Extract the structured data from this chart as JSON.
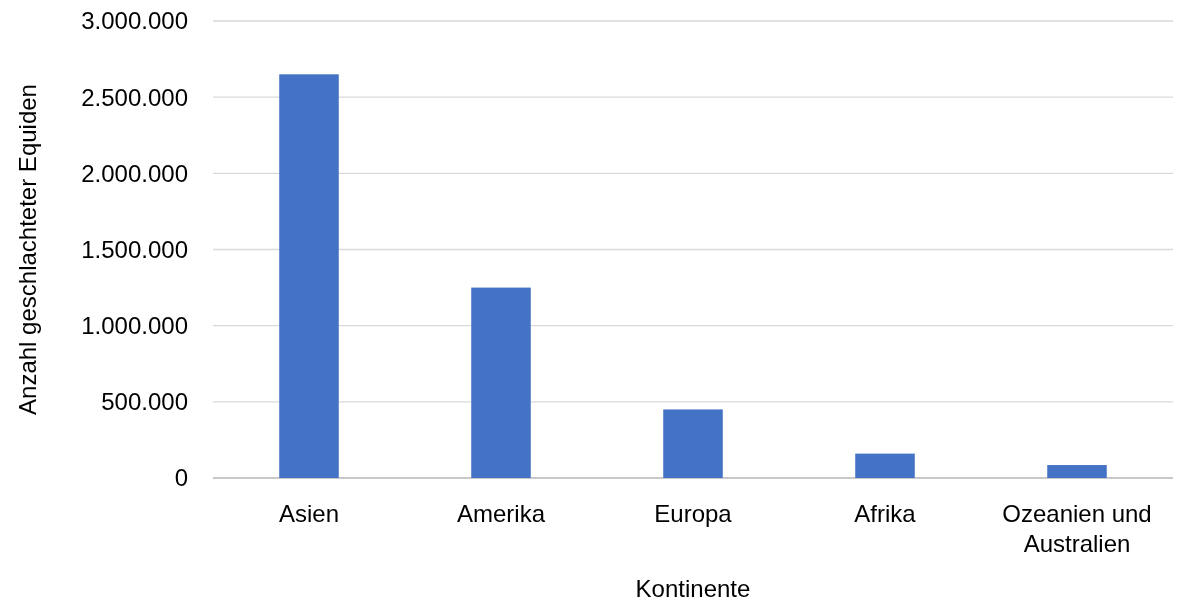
{
  "chart_data": {
    "type": "bar",
    "xlabel": "Kontinente",
    "ylabel": "Anzahl geschlachteter Equiden",
    "categories": [
      "Asien",
      "Amerika",
      "Europa",
      "Afrika",
      "Ozeanien und Australien"
    ],
    "values": [
      2650000,
      1250000,
      450000,
      160000,
      85000
    ],
    "color": "#4472c4",
    "ylim": [
      0,
      3000000
    ],
    "yticks": [
      {
        "value": 0,
        "label": "0"
      },
      {
        "value": 500000,
        "label": "500.000"
      },
      {
        "value": 1000000,
        "label": "1.000.000"
      },
      {
        "value": 1500000,
        "label": "1.500.000"
      },
      {
        "value": 2000000,
        "label": "2.000.000"
      },
      {
        "value": 2500000,
        "label": "2.500.000"
      },
      {
        "value": 3000000,
        "label": "3.000.000"
      }
    ],
    "grid": true
  }
}
